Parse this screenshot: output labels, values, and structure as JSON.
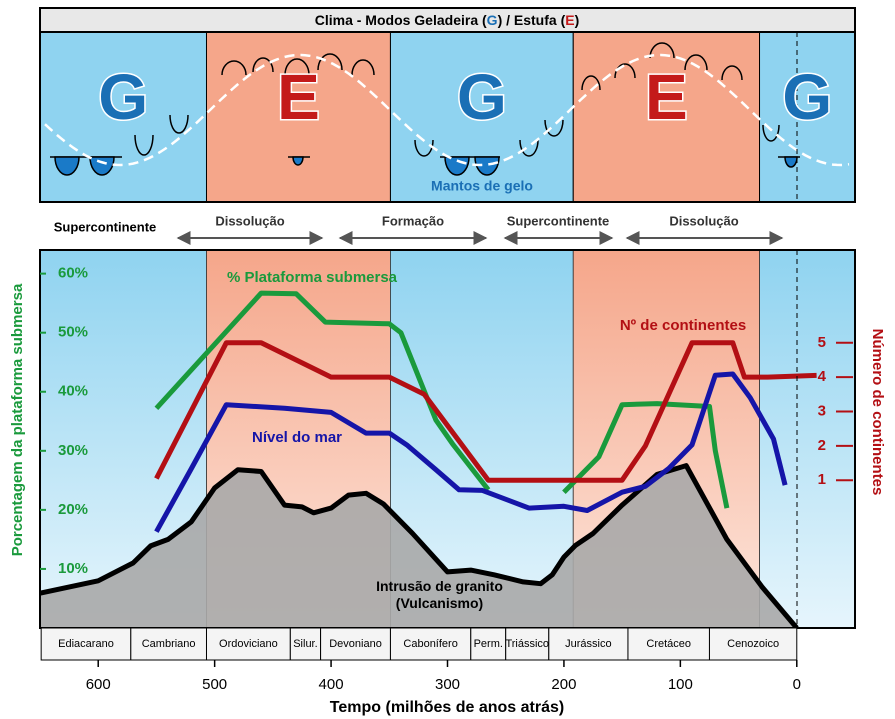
{
  "title_parts": [
    "Clima - Modos Geladeira (",
    "G",
    ") / Estufa (",
    "E",
    ")"
  ],
  "ice_label": "Mantos  de gelo",
  "phases": [
    "Supercontinente",
    "Dissolução",
    "Formação",
    "Supercontinente",
    "Dissolução"
  ],
  "chart_data": {
    "type": "line",
    "climate_modes": [
      {
        "start": 650,
        "end": 507,
        "mode": "G"
      },
      {
        "start": 507,
        "end": 349,
        "mode": "E"
      },
      {
        "start": 349,
        "end": 192,
        "mode": "G"
      },
      {
        "start": 192,
        "end": 32,
        "mode": "E"
      },
      {
        "start": 32,
        "end": -50,
        "mode": "G"
      }
    ],
    "xlim": [
      650,
      -50
    ],
    "xticks": [
      600,
      500,
      400,
      300,
      200,
      100,
      0
    ],
    "xlabel": "Tempo (milhões de anos atrás)",
    "ylim": [
      0,
      64
    ],
    "yticks": [
      {
        "value": 10,
        "label": "10%"
      },
      {
        "value": 20,
        "label": "20%"
      },
      {
        "value": 30,
        "label": "30%"
      },
      {
        "value": 40,
        "label": "40%"
      },
      {
        "value": 50,
        "label": "50%"
      },
      {
        "value": 60,
        "label": "60%"
      }
    ],
    "ylabel": "Porcentagem da plataforma submersa",
    "y2lim": [
      -3.3,
      7.7
    ],
    "y2ticks": [
      1,
      2,
      3,
      4,
      5
    ],
    "y2label": "Número de continentes",
    "series": [
      {
        "name": "Intrusão de granito (Vulcanismo)",
        "color": "#000000",
        "x": [
          650,
          600,
          570,
          555,
          540,
          520,
          500,
          480,
          460,
          440,
          425,
          415,
          400,
          385,
          370,
          355,
          330,
          300,
          280,
          260,
          235,
          220,
          210,
          200,
          190,
          175,
          150,
          120,
          95,
          60,
          30,
          0
        ],
        "values": [
          5.9,
          8,
          11,
          13.9,
          15,
          18,
          23.7,
          26.8,
          26.5,
          20.8,
          20.5,
          19.5,
          20.3,
          22.5,
          22.8,
          21,
          16,
          9.5,
          9.8,
          9,
          7.8,
          7.5,
          9,
          12,
          14,
          16,
          20.8,
          26,
          27.5,
          15,
          7,
          0
        ]
      },
      {
        "name": "% Plataforma submersa",
        "color": "#1a9a3c",
        "x": [
          550,
          460,
          430,
          405,
          350,
          340,
          310,
          295,
          265,
          230,
          200,
          170,
          150,
          120,
          75,
          70,
          60
        ],
        "values": [
          37.2,
          56.7,
          56.6,
          51.8,
          51.5,
          50,
          35.2,
          31,
          23.4,
          null,
          23,
          29,
          37.8,
          38,
          37.5,
          30,
          20.3
        ]
      },
      {
        "name": "Nível do mar",
        "color": "#1515a8",
        "x": [
          550,
          520,
          490,
          440,
          400,
          370,
          350,
          335,
          310,
          290,
          270,
          230,
          200,
          180,
          150,
          130,
          110,
          90,
          70,
          55,
          40,
          20,
          10
        ],
        "values": [
          16.3,
          27,
          37.8,
          37.2,
          36.5,
          33,
          33,
          31,
          26.8,
          23.4,
          23.3,
          20.3,
          20.6,
          19.9,
          23,
          24,
          27,
          31,
          42.8,
          43,
          39,
          32,
          24.2
        ]
      },
      {
        "name": "Nº de continentes",
        "color": "#b30f14",
        "axis": "y2",
        "x": [
          550,
          490,
          460,
          400,
          350,
          320,
          265,
          150,
          130,
          90,
          55,
          45,
          25,
          -17
        ],
        "values": [
          1.05,
          5,
          5,
          4,
          4,
          3.5,
          1,
          1,
          2,
          5,
          5,
          4,
          4,
          4.05
        ]
      }
    ],
    "periods": [
      {
        "name": "Ediacarano",
        "start": 649,
        "end": 572
      },
      {
        "name": "Cambriano",
        "start": 572,
        "end": 507
      },
      {
        "name": "Ordoviciano",
        "start": 507,
        "end": 435
      },
      {
        "name": "Silur.",
        "start": 435,
        "end": 409
      },
      {
        "name": "Devoniano",
        "start": 409,
        "end": 349
      },
      {
        "name": "Cabonífero",
        "start": 349,
        "end": 280
      },
      {
        "name": "Perm.",
        "start": 280,
        "end": 250
      },
      {
        "name": "Triássico",
        "start": 250,
        "end": 213
      },
      {
        "name": "Jurássico",
        "start": 213,
        "end": 145
      },
      {
        "name": "Cretáceo",
        "start": 145,
        "end": 75
      },
      {
        "name": "Cenozoico",
        "start": 75,
        "end": 0
      }
    ]
  }
}
